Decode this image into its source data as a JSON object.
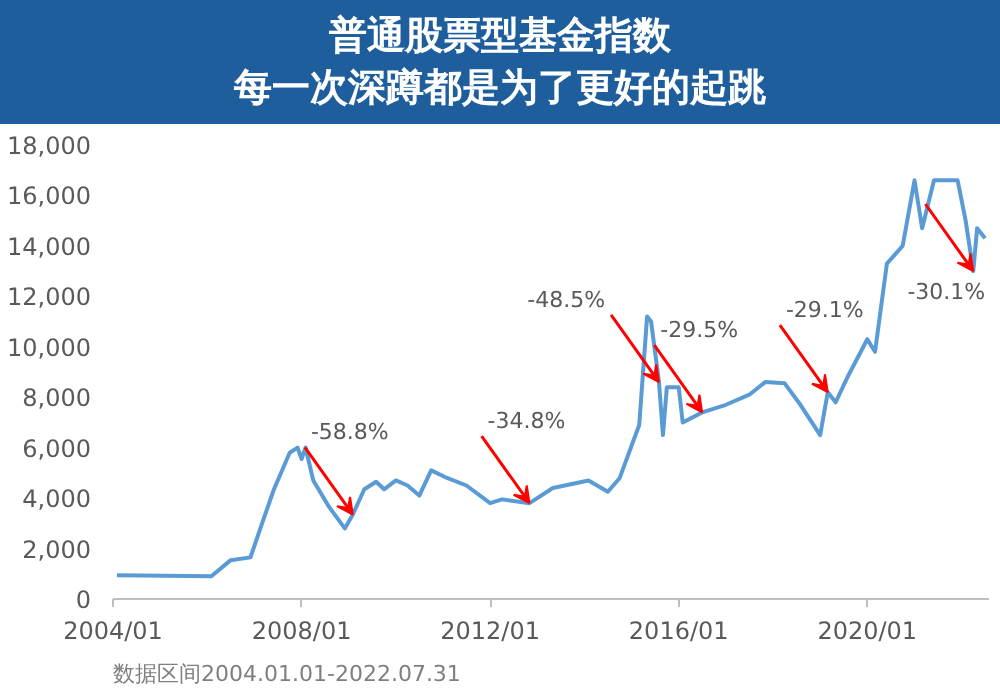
{
  "chart_data": {
    "type": "line",
    "title": "普通股票型基金指数",
    "subtitle": "每一次深蹲都是为了更好的起跳",
    "x": [
      "2004-02",
      "2006-02",
      "2006-07",
      "2006-12",
      "2007-03",
      "2007-06",
      "2007-10",
      "2007-12",
      "2008-01",
      "2008-02",
      "2008-04",
      "2008-08",
      "2008-12",
      "2009-02",
      "2009-05",
      "2009-08",
      "2009-10",
      "2010-01",
      "2010-04",
      "2010-07",
      "2010-10",
      "2011-02",
      "2011-07",
      "2012-01",
      "2012-04",
      "2012-11",
      "2013-05",
      "2014-02",
      "2014-07",
      "2014-10",
      "2015-03",
      "2015-05",
      "2015-06",
      "2015-08",
      "2015-09",
      "2015-10",
      "2016-01",
      "2016-02",
      "2016-07",
      "2017-01",
      "2017-07",
      "2017-11",
      "2018-04",
      "2018-08",
      "2019-01",
      "2019-03",
      "2019-05",
      "2019-08",
      "2020-01",
      "2020-03",
      "2020-06",
      "2020-10",
      "2021-01",
      "2021-03",
      "2021-06",
      "2021-12",
      "2022-02",
      "2022-04",
      "2022-05",
      "2022-07"
    ],
    "series": [
      {
        "color": "#5b9bd5",
        "values": [
          940,
          900,
          1540,
          1650,
          3000,
          4350,
          5800,
          6000,
          5550,
          6000,
          4700,
          3650,
          2800,
          3350,
          4350,
          4650,
          4350,
          4700,
          4500,
          4100,
          5100,
          4800,
          4500,
          3800,
          3950,
          3800,
          4400,
          4700,
          4250,
          4800,
          6900,
          11200,
          11000,
          8600,
          6500,
          8400,
          8400,
          7000,
          7400,
          7700,
          8100,
          8600,
          8550,
          7700,
          6500,
          8200,
          7800,
          8800,
          10300,
          9800,
          13300,
          14000,
          16600,
          14700,
          16600,
          16600,
          15000,
          13000,
          14700,
          14300
        ]
      }
    ],
    "xlim": [
      "2004-01",
      "2022-08"
    ],
    "xticks": [
      {
        "value": "2004-01",
        "label": "2004/01"
      },
      {
        "value": "2008-01",
        "label": "2008/01"
      },
      {
        "value": "2012-01",
        "label": "2012/01"
      },
      {
        "value": "2016-01",
        "label": "2016/01"
      },
      {
        "value": "2020-01",
        "label": "2020/01"
      }
    ],
    "ylim": [
      0,
      18000
    ],
    "yticks": [
      0,
      {
        "value": 2000,
        "label": "2,000"
      },
      {
        "value": 4000,
        "label": "4,000"
      },
      {
        "value": 6000,
        "label": "6,000"
      },
      {
        "value": 8000,
        "label": "8,000"
      },
      {
        "value": 10000,
        "label": "10,000"
      },
      {
        "value": 12000,
        "label": "12,000"
      },
      {
        "value": 14000,
        "label": "14,000"
      },
      {
        "value": 16000,
        "label": "16,000"
      },
      {
        "value": 18000,
        "label": "18,000"
      }
    ],
    "grid": false,
    "annotations": [
      {
        "text": "-58.8%",
        "x": "2009-02",
        "y": 3350
      },
      {
        "text": "-34.8%",
        "x": "2012-11",
        "y": 3800
      },
      {
        "text": "-48.5%",
        "x": "2015-08",
        "y": 8600
      },
      {
        "text": "-29.5%",
        "x": "2016-07",
        "y": 7400
      },
      {
        "text": "-29.1%",
        "x": "2019-03",
        "y": 8200
      },
      {
        "text": "-30.1%",
        "x": "2022-04",
        "y": 13000
      },
      "数据区间2004.01.01-2022.07.31"
    ]
  }
}
